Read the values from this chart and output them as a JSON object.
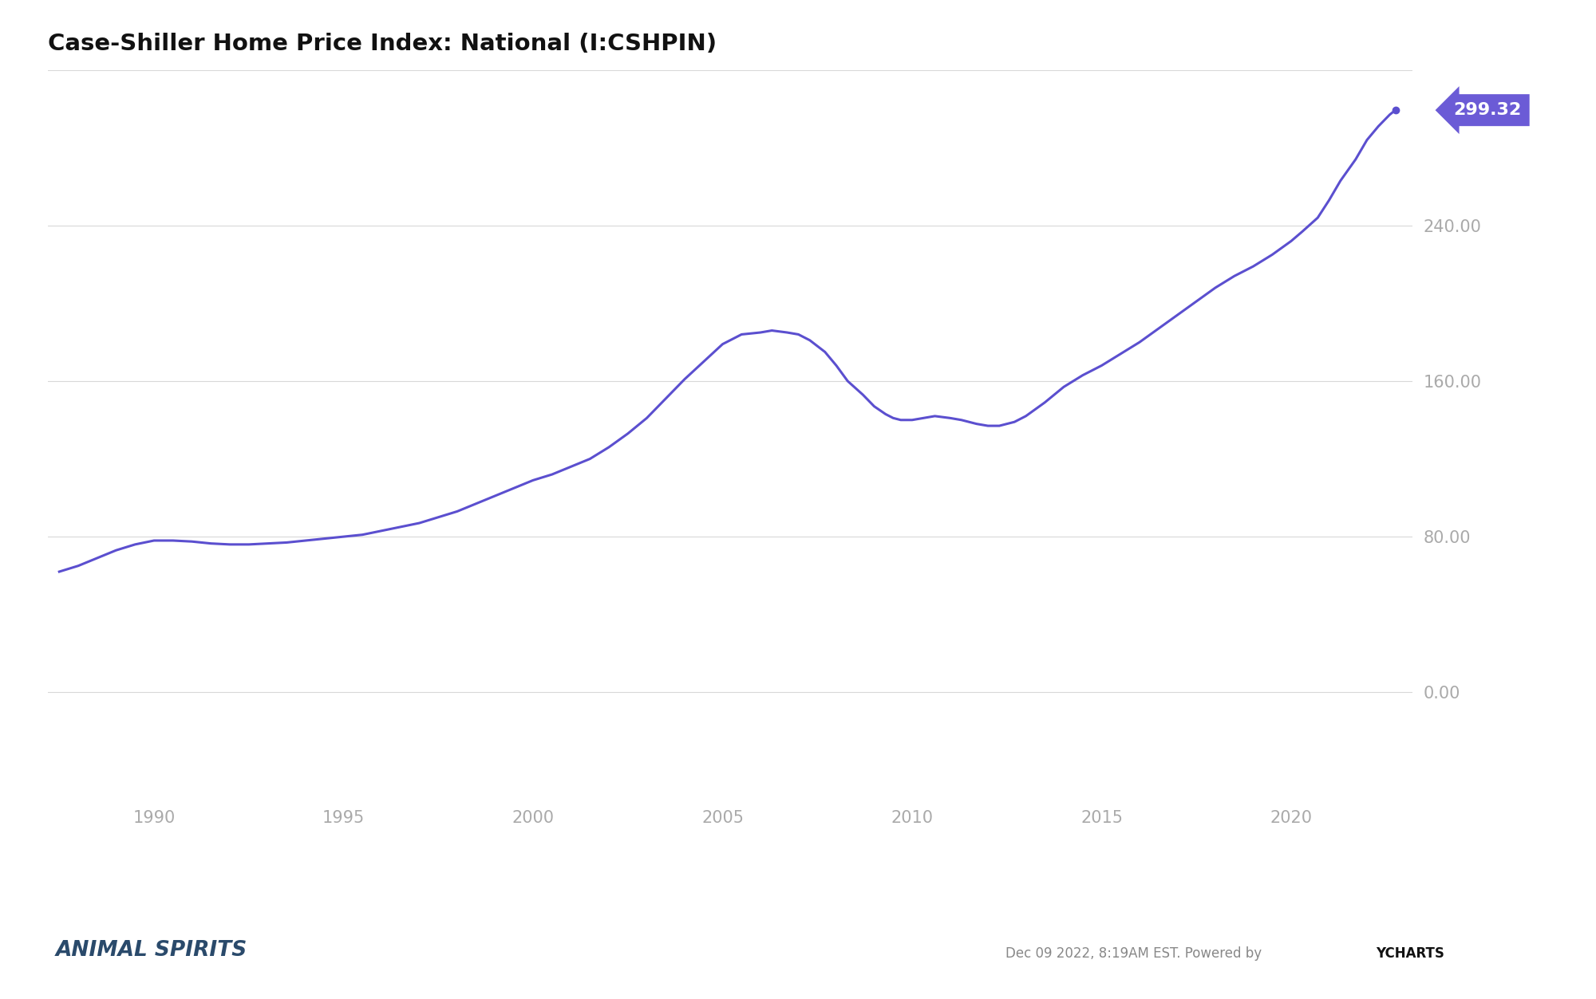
{
  "title": "Case-Shiller Home Price Index: National (I:CSHPIN)",
  "title_fontsize": 21,
  "line_color": "#5b4fcf",
  "line_width": 2.2,
  "background_color": "#ffffff",
  "grid_color": "#d8d8d8",
  "label_color": "#aaaaaa",
  "end_label_value": "299.32",
  "end_label_bg": "#6b5bd6",
  "end_label_text_color": "#ffffff",
  "footer_left": "ANIMAL SPIRITS",
  "footer_right_normal": "Dec 09 2022, 8:19AM EST. Powered by ",
  "footer_right_bold": "YCHARTS",
  "yticks": [
    0.0,
    80.0,
    160.0,
    240.0
  ],
  "ylim_bottom": -55,
  "ylim_top": 320,
  "xtick_years": [
    1990,
    1995,
    2000,
    2005,
    2010,
    2015,
    2020
  ],
  "xtick_labels": [
    "1990",
    "1995",
    "2000",
    "2005",
    "2010",
    "2015",
    "2020"
  ],
  "xlim_left": 1987.2,
  "xlim_right": 2023.2,
  "detailed_x": [
    1987.5,
    1988.0,
    1988.5,
    1989.0,
    1989.5,
    1990.0,
    1990.5,
    1991.0,
    1991.5,
    1992.0,
    1992.5,
    1993.0,
    1993.5,
    1994.0,
    1994.5,
    1995.0,
    1995.5,
    1996.0,
    1996.5,
    1997.0,
    1997.5,
    1998.0,
    1998.5,
    1999.0,
    1999.5,
    2000.0,
    2000.5,
    2001.0,
    2001.5,
    2002.0,
    2002.5,
    2003.0,
    2003.5,
    2004.0,
    2004.5,
    2005.0,
    2005.5,
    2006.0,
    2006.3,
    2006.7,
    2007.0,
    2007.3,
    2007.7,
    2008.0,
    2008.3,
    2008.7,
    2009.0,
    2009.3,
    2009.5,
    2009.7,
    2010.0,
    2010.3,
    2010.6,
    2011.0,
    2011.3,
    2011.7,
    2012.0,
    2012.3,
    2012.7,
    2013.0,
    2013.5,
    2014.0,
    2014.5,
    2015.0,
    2015.5,
    2016.0,
    2016.5,
    2017.0,
    2017.5,
    2018.0,
    2018.5,
    2019.0,
    2019.5,
    2020.0,
    2020.3,
    2020.7,
    2021.0,
    2021.3,
    2021.7,
    2022.0,
    2022.3,
    2022.6,
    2022.75
  ],
  "detailed_y": [
    62,
    65,
    69,
    73,
    76,
    78,
    78,
    77.5,
    76.5,
    76,
    76,
    76.5,
    77,
    78,
    79,
    80,
    81,
    83,
    85,
    87,
    90,
    93,
    97,
    101,
    105,
    109,
    112,
    116,
    120,
    126,
    133,
    141,
    151,
    161,
    170,
    179,
    184,
    185,
    186,
    185,
    184,
    181,
    175,
    168,
    160,
    153,
    147,
    143,
    141,
    140,
    140,
    141,
    142,
    141,
    140,
    138,
    137,
    137,
    139,
    142,
    149,
    157,
    163,
    168,
    174,
    180,
    187,
    194,
    201,
    208,
    214,
    219,
    225,
    232,
    237,
    244,
    253,
    263,
    274,
    284,
    291,
    297,
    299.32
  ]
}
